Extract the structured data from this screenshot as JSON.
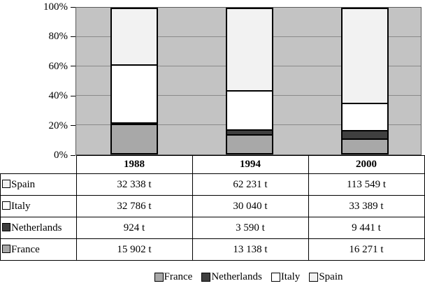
{
  "chart_data": {
    "type": "bar",
    "subtype": "stacked-100-percent",
    "categories": [
      "1988",
      "1994",
      "2000"
    ],
    "series": [
      {
        "name": "France",
        "color": "#a8a8a8",
        "values": [
          15902,
          13138,
          16271
        ]
      },
      {
        "name": "Netherlands",
        "color": "#3f3f3f",
        "values": [
          924,
          3590,
          9441
        ]
      },
      {
        "name": "Italy",
        "color": "#ffffff",
        "values": [
          32786,
          30040,
          33389
        ]
      },
      {
        "name": "Spain",
        "color": "#f2f2f2",
        "values": [
          32338,
          62231,
          113549
        ]
      }
    ],
    "unit": "t",
    "title": "",
    "xlabel": "",
    "ylabel": "",
    "ylim": [
      "0%",
      "100%"
    ],
    "y_ticks": [
      "0%",
      "20%",
      "40%",
      "60%",
      "80%",
      "100%"
    ],
    "grid": true,
    "plot_background": "#c3c3c3",
    "grid_color": "#8a8a8a",
    "legend_position": "bottom"
  },
  "table": {
    "header": [
      "",
      "1988",
      "1994",
      "2000"
    ],
    "rows": [
      {
        "label": "Spain",
        "swatch": "#f2f2f2",
        "values": [
          "32 338 t",
          "62 231 t",
          "113 549 t"
        ]
      },
      {
        "label": "Italy",
        "swatch": "#ffffff",
        "values": [
          "32 786 t",
          "30 040 t",
          "33 389 t"
        ]
      },
      {
        "label": "Netherlands",
        "swatch": "#3f3f3f",
        "values": [
          "924 t",
          "3 590 t",
          "9 441 t"
        ]
      },
      {
        "label": "France",
        "swatch": "#a8a8a8",
        "values": [
          "15 902 t",
          "13 138 t",
          "16 271 t"
        ]
      }
    ]
  },
  "legend": {
    "items": [
      {
        "label": "France",
        "color": "#a8a8a8"
      },
      {
        "label": "Netherlands",
        "color": "#3f3f3f"
      },
      {
        "label": "Italy",
        "color": "#ffffff"
      },
      {
        "label": "Spain",
        "color": "#f2f2f2"
      }
    ]
  }
}
